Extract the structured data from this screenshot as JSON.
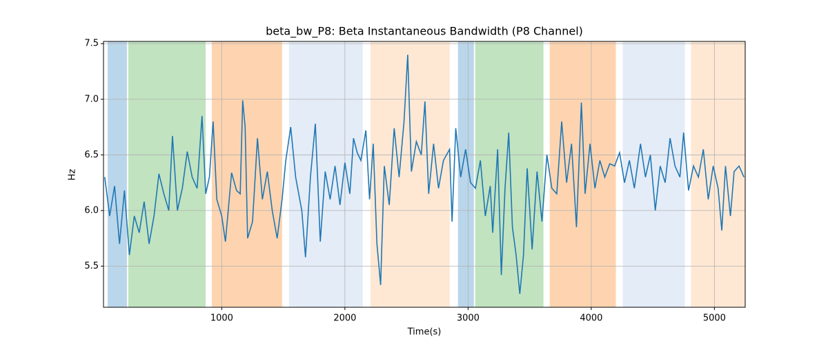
{
  "chart_data": {
    "type": "line",
    "title": "beta_bw_P8: Beta Instantaneous Bandwidth (P8 Channel)",
    "xlabel": "Time(s)",
    "ylabel": "Hz",
    "xlim": [
      40,
      5250
    ],
    "ylim": [
      5.13,
      7.52
    ],
    "xticks": [
      1000,
      2000,
      3000,
      4000,
      5000
    ],
    "yticks": [
      5.5,
      {
        "value": 6,
        "label": "6.0"
      },
      6.5,
      {
        "value": 7,
        "label": "7.0"
      },
      7.5
    ],
    "grid": true,
    "spans": [
      {
        "start": 74,
        "end": 230,
        "color": "#bad6ea"
      },
      {
        "start": 241,
        "end": 869,
        "color": "#c1e3c0"
      },
      {
        "start": 919,
        "end": 1490,
        "color": "#fed4b0"
      },
      {
        "start": 1546,
        "end": 2145,
        "color": "#e4ecf7"
      },
      {
        "start": 2207,
        "end": 2851,
        "color": "#fee8d4"
      },
      {
        "start": 2918,
        "end": 3047,
        "color": "#bad6ea"
      },
      {
        "start": 3058,
        "end": 3612,
        "color": "#c1e3c0"
      },
      {
        "start": 3663,
        "end": 4200,
        "color": "#fed4b0"
      },
      {
        "start": 4256,
        "end": 4760,
        "color": "#e4ecf7"
      },
      {
        "start": 4810,
        "end": 5250,
        "color": "#fee8d4"
      }
    ],
    "x": [
      50,
      90,
      130,
      170,
      210,
      250,
      290,
      330,
      370,
      410,
      450,
      490,
      530,
      570,
      600,
      640,
      680,
      720,
      760,
      800,
      840,
      870,
      900,
      930,
      960,
      1000,
      1030,
      1080,
      1120,
      1150,
      1170,
      1190,
      1210,
      1250,
      1290,
      1330,
      1370,
      1410,
      1450,
      1490,
      1520,
      1560,
      1600,
      1650,
      1680,
      1720,
      1760,
      1800,
      1840,
      1880,
      1920,
      1960,
      2000,
      2040,
      2070,
      2100,
      2130,
      2170,
      2200,
      2230,
      2260,
      2290,
      2320,
      2360,
      2400,
      2440,
      2480,
      2510,
      2540,
      2580,
      2620,
      2650,
      2680,
      2720,
      2760,
      2800,
      2850,
      2870,
      2900,
      2940,
      2980,
      3020,
      3060,
      3100,
      3140,
      3180,
      3200,
      3240,
      3270,
      3300,
      3330,
      3360,
      3390,
      3420,
      3450,
      3480,
      3520,
      3560,
      3600,
      3640,
      3680,
      3720,
      3760,
      3800,
      3840,
      3880,
      3920,
      3950,
      3990,
      4030,
      4070,
      4110,
      4150,
      4190,
      4230,
      4270,
      4310,
      4350,
      4400,
      4440,
      4480,
      4520,
      4560,
      4600,
      4640,
      4680,
      4720,
      4750,
      4790,
      4830,
      4870,
      4910,
      4950,
      4990,
      5030,
      5060,
      5090,
      5130,
      5160,
      5200,
      5240
    ],
    "series": [
      {
        "color": "#1f77b4",
        "values": [
          6.3,
          5.95,
          6.22,
          5.7,
          6.18,
          5.6,
          5.95,
          5.8,
          6.08,
          5.7,
          5.95,
          6.33,
          6.15,
          6.0,
          6.67,
          6.0,
          6.2,
          6.53,
          6.3,
          6.2,
          6.85,
          6.15,
          6.3,
          6.8,
          6.1,
          5.95,
          5.72,
          6.34,
          6.18,
          6.15,
          6.99,
          6.75,
          5.75,
          5.9,
          6.65,
          6.1,
          6.35,
          6.0,
          5.75,
          6.1,
          6.45,
          6.75,
          6.3,
          6.0,
          5.58,
          6.3,
          6.78,
          5.72,
          6.35,
          6.1,
          6.4,
          6.05,
          6.43,
          6.15,
          6.65,
          6.52,
          6.45,
          6.72,
          6.1,
          6.6,
          5.7,
          5.33,
          6.4,
          6.05,
          6.74,
          6.3,
          6.8,
          7.4,
          6.35,
          6.62,
          6.5,
          6.98,
          6.15,
          6.6,
          6.2,
          6.45,
          6.55,
          5.9,
          6.74,
          6.3,
          6.55,
          6.25,
          6.2,
          6.45,
          5.95,
          6.22,
          5.8,
          6.55,
          5.42,
          6.2,
          6.7,
          5.85,
          5.6,
          5.25,
          5.6,
          6.38,
          5.65,
          6.35,
          5.9,
          6.5,
          6.2,
          6.15,
          6.8,
          6.25,
          6.6,
          5.85,
          6.97,
          6.15,
          6.6,
          6.2,
          6.45,
          6.3,
          6.42,
          6.4,
          6.52,
          6.25,
          6.45,
          6.2,
          6.6,
          6.3,
          6.5,
          6.0,
          6.4,
          6.25,
          6.65,
          6.4,
          6.3,
          6.7,
          6.18,
          6.4,
          6.3,
          6.55,
          6.1,
          6.4,
          6.2,
          5.82,
          6.4,
          5.95,
          6.35,
          6.4,
          6.3
        ]
      }
    ]
  }
}
